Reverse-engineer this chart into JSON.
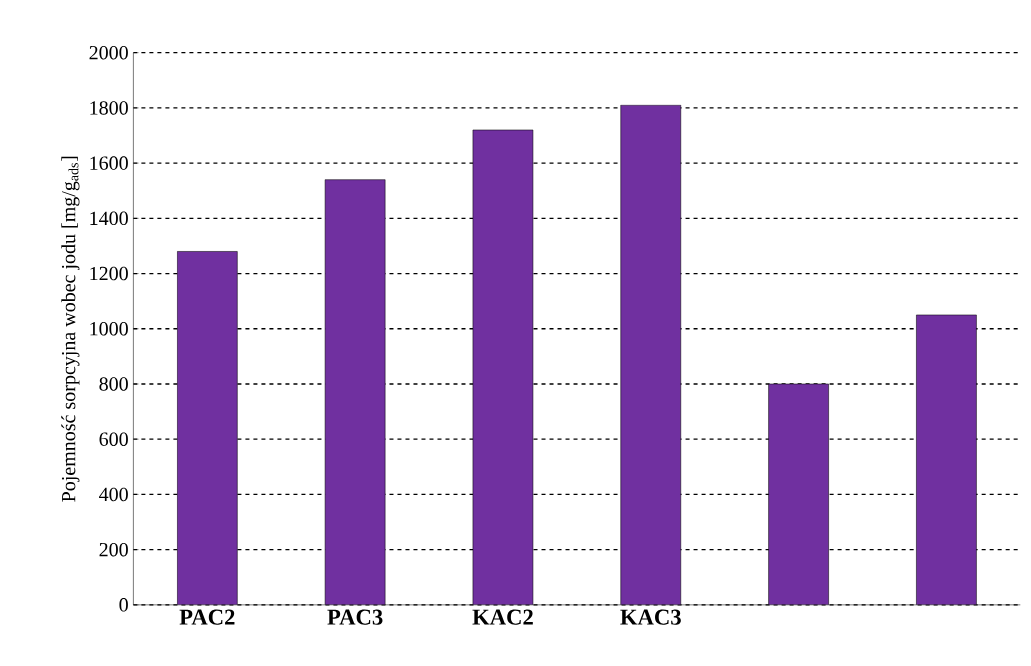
{
  "chart_data": {
    "type": "bar",
    "ylabel": "Pojemność sorpcyjna wobec jodu [mg/g$_{ads}$]",
    "categories": [
      "PAC2",
      "PAC3",
      "KAC2",
      "KAC3",
      null,
      null
    ],
    "values": [
      1280,
      1540,
      1720,
      1810,
      800,
      1050
    ],
    "color": "#7030a0",
    "ylim": [
      0,
      2000
    ],
    "yticks": [
      0,
      200,
      400,
      600,
      800,
      1000,
      1200,
      1400,
      1600,
      1800,
      2000
    ],
    "grid": "y"
  }
}
